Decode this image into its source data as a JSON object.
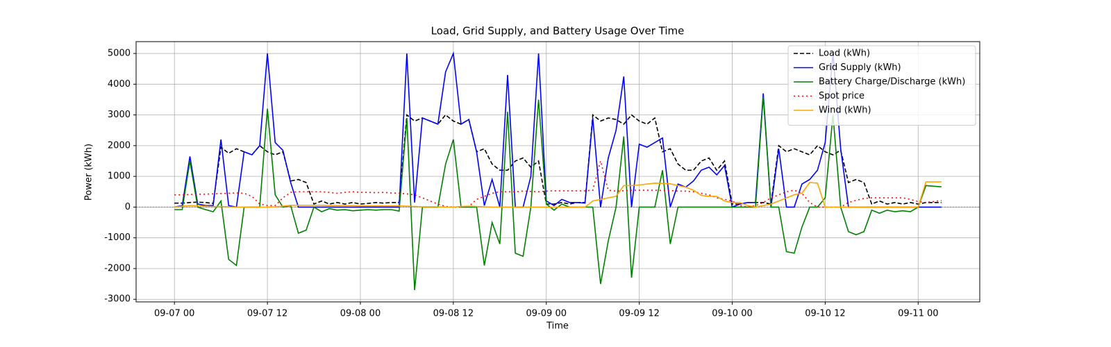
{
  "chart_data": {
    "type": "line",
    "title": "Load, Grid Supply, and Battery Usage Over Time",
    "x_label": "Time",
    "y_label": "Power (kWh)",
    "x": [
      "09-07 00",
      "09-07 01",
      "09-07 02",
      "09-07 03",
      "09-07 04",
      "09-07 05",
      "09-07 06",
      "09-07 07",
      "09-07 08",
      "09-07 09",
      "09-07 10",
      "09-07 11",
      "09-07 12",
      "09-07 13",
      "09-07 14",
      "09-07 15",
      "09-07 16",
      "09-07 17",
      "09-07 18",
      "09-07 19",
      "09-07 20",
      "09-07 21",
      "09-07 22",
      "09-07 23",
      "09-08 00",
      "09-08 01",
      "09-08 02",
      "09-08 03",
      "09-08 04",
      "09-08 05",
      "09-08 06",
      "09-08 07",
      "09-08 08",
      "09-08 09",
      "09-08 10",
      "09-08 11",
      "09-08 12",
      "09-08 13",
      "09-08 14",
      "09-08 15",
      "09-08 16",
      "09-08 17",
      "09-08 18",
      "09-08 19",
      "09-08 20",
      "09-08 21",
      "09-08 22",
      "09-08 23",
      "09-09 00",
      "09-09 01",
      "09-09 02",
      "09-09 03",
      "09-09 04",
      "09-09 05",
      "09-09 06",
      "09-09 07",
      "09-09 08",
      "09-09 09",
      "09-09 10",
      "09-09 11",
      "09-09 12",
      "09-09 13",
      "09-09 14",
      "09-09 15",
      "09-09 16",
      "09-09 17",
      "09-09 18",
      "09-09 19",
      "09-09 20",
      "09-09 21",
      "09-09 22",
      "09-09 23",
      "09-10 00",
      "09-10 01",
      "09-10 02",
      "09-10 03",
      "09-10 04",
      "09-10 05",
      "09-10 06",
      "09-10 07",
      "09-10 08",
      "09-10 09",
      "09-10 10",
      "09-10 11",
      "09-10 12",
      "09-10 13",
      "09-10 14",
      "09-10 15",
      "09-10 16",
      "09-10 17",
      "09-10 18",
      "09-10 19",
      "09-10 20",
      "09-10 21",
      "09-10 22",
      "09-10 23",
      "09-11 00",
      "09-11 01",
      "09-11 02",
      "09-11 03"
    ],
    "series": [
      {
        "name": "Load (kWh)",
        "color": "#000000",
        "style": "dashed",
        "values": [
          130,
          130,
          150,
          160,
          150,
          120,
          1950,
          1750,
          1900,
          1800,
          1700,
          2000,
          1800,
          1700,
          1800,
          850,
          900,
          800,
          100,
          200,
          100,
          150,
          100,
          150,
          100,
          120,
          150,
          130,
          150,
          150,
          3000,
          2800,
          2900,
          2800,
          2700,
          3000,
          2800,
          2700,
          2850,
          1800,
          1900,
          1400,
          1200,
          1200,
          1500,
          1600,
          1300,
          1500,
          100,
          100,
          150,
          100,
          150,
          150,
          3000,
          2800,
          2900,
          2850,
          2700,
          3000,
          2800,
          2700,
          2900,
          1800,
          1900,
          1400,
          1200,
          1200,
          1500,
          1600,
          1200,
          1500,
          100,
          100,
          150,
          150,
          150,
          100,
          2000,
          1800,
          1900,
          1800,
          1700,
          2000,
          1800,
          1700,
          1850,
          800,
          900,
          800,
          100,
          200,
          100,
          150,
          100,
          150,
          100,
          150,
          150,
          150
        ]
      },
      {
        "name": "Grid Supply (kWh)",
        "color": "#0000ff",
        "style": "solid",
        "values": [
          0,
          50,
          1650,
          100,
          50,
          50,
          2200,
          50,
          0,
          1800,
          1700,
          2000,
          5000,
          2100,
          1850,
          800,
          0,
          0,
          0,
          0,
          0,
          0,
          0,
          0,
          0,
          0,
          0,
          0,
          0,
          0,
          5000,
          150,
          2900,
          2800,
          2700,
          4400,
          5000,
          2700,
          2850,
          1800,
          50,
          900,
          0,
          4300,
          0,
          0,
          1000,
          5000,
          200,
          50,
          250,
          150,
          150,
          130,
          2900,
          0,
          1600,
          2500,
          4250,
          0,
          2050,
          1950,
          2100,
          2250,
          0,
          750,
          650,
          850,
          1200,
          1300,
          1050,
          1350,
          0,
          100,
          150,
          150,
          3700,
          0,
          1900,
          0,
          0,
          750,
          900,
          1200,
          2100,
          5000,
          1900,
          0,
          0,
          0,
          0,
          0,
          0,
          0,
          0,
          0,
          0,
          0,
          0,
          0
        ]
      },
      {
        "name": "Battery Charge/Discharge (kWh)",
        "color": "#008000",
        "style": "solid",
        "values": [
          -80,
          -80,
          1500,
          0,
          -80,
          -150,
          200,
          -1700,
          -1900,
          0,
          0,
          0,
          3200,
          400,
          0,
          50,
          -850,
          -750,
          0,
          -150,
          -50,
          -100,
          -80,
          -120,
          -100,
          -80,
          -100,
          -80,
          -80,
          -130,
          2900,
          -2700,
          0,
          0,
          0,
          1400,
          2200,
          0,
          0,
          0,
          -1900,
          -500,
          -1200,
          3100,
          -1500,
          -1600,
          0,
          3500,
          100,
          -100,
          100,
          0,
          0,
          0,
          0,
          -2500,
          -1100,
          0,
          2300,
          -2300,
          0,
          0,
          0,
          1200,
          -1200,
          0,
          0,
          0,
          0,
          0,
          0,
          0,
          0,
          0,
          0,
          0,
          3600,
          0,
          0,
          -1450,
          -1500,
          -650,
          0,
          0,
          300,
          3000,
          0,
          -800,
          -900,
          -800,
          -100,
          -200,
          -100,
          -150,
          -120,
          -150,
          0,
          700,
          680,
          660
        ]
      },
      {
        "name": "Spot price",
        "color": "#ff0000",
        "style": "dotted",
        "values": [
          400,
          400,
          410,
          420,
          420,
          430,
          440,
          450,
          460,
          450,
          350,
          100,
          50,
          50,
          300,
          480,
          500,
          500,
          500,
          500,
          480,
          450,
          480,
          500,
          480,
          480,
          470,
          480,
          460,
          450,
          430,
          400,
          300,
          200,
          100,
          20,
          0,
          0,
          20,
          250,
          350,
          450,
          500,
          500,
          500,
          520,
          510,
          500,
          520,
          530,
          530,
          530,
          530,
          530,
          550,
          1500,
          550,
          520,
          530,
          550,
          550,
          550,
          550,
          540,
          540,
          520,
          520,
          500,
          450,
          400,
          300,
          250,
          200,
          50,
          0,
          50,
          150,
          300,
          400,
          500,
          550,
          450,
          150,
          0,
          0,
          0,
          0,
          150,
          220,
          280,
          300,
          300,
          300,
          300,
          300,
          250,
          180,
          150,
          180,
          220
        ]
      },
      {
        "name": "Wind (kWh)",
        "color": "#ffa500",
        "style": "solid",
        "values": [
          0,
          30,
          50,
          40,
          30,
          20,
          20,
          10,
          0,
          0,
          0,
          0,
          0,
          10,
          30,
          60,
          60,
          60,
          60,
          60,
          50,
          50,
          50,
          50,
          40,
          40,
          40,
          40,
          40,
          40,
          30,
          20,
          10,
          10,
          10,
          0,
          0,
          20,
          30,
          20,
          10,
          0,
          0,
          0,
          0,
          0,
          0,
          0,
          0,
          0,
          0,
          0,
          0,
          0,
          200,
          250,
          300,
          350,
          700,
          700,
          720,
          750,
          780,
          770,
          760,
          700,
          650,
          550,
          380,
          350,
          350,
          200,
          150,
          150,
          50,
          0,
          50,
          100,
          200,
          300,
          400,
          450,
          800,
          780,
          0,
          0,
          0,
          0,
          0,
          0,
          0,
          0,
          0,
          0,
          0,
          0,
          0,
          820,
          820,
          820
        ]
      }
    ],
    "xticks": [
      "09-07 00",
      "09-07 12",
      "09-08 00",
      "09-08 12",
      "09-09 00",
      "09-09 12",
      "09-10 00",
      "09-10 12",
      "09-11 00"
    ],
    "ylim": [
      -3085,
      5385
    ],
    "yticks": [
      -3000,
      -2000,
      -1000,
      0,
      1000,
      2000,
      3000,
      4000,
      5000
    ],
    "grid": true,
    "legend": "upper right"
  }
}
